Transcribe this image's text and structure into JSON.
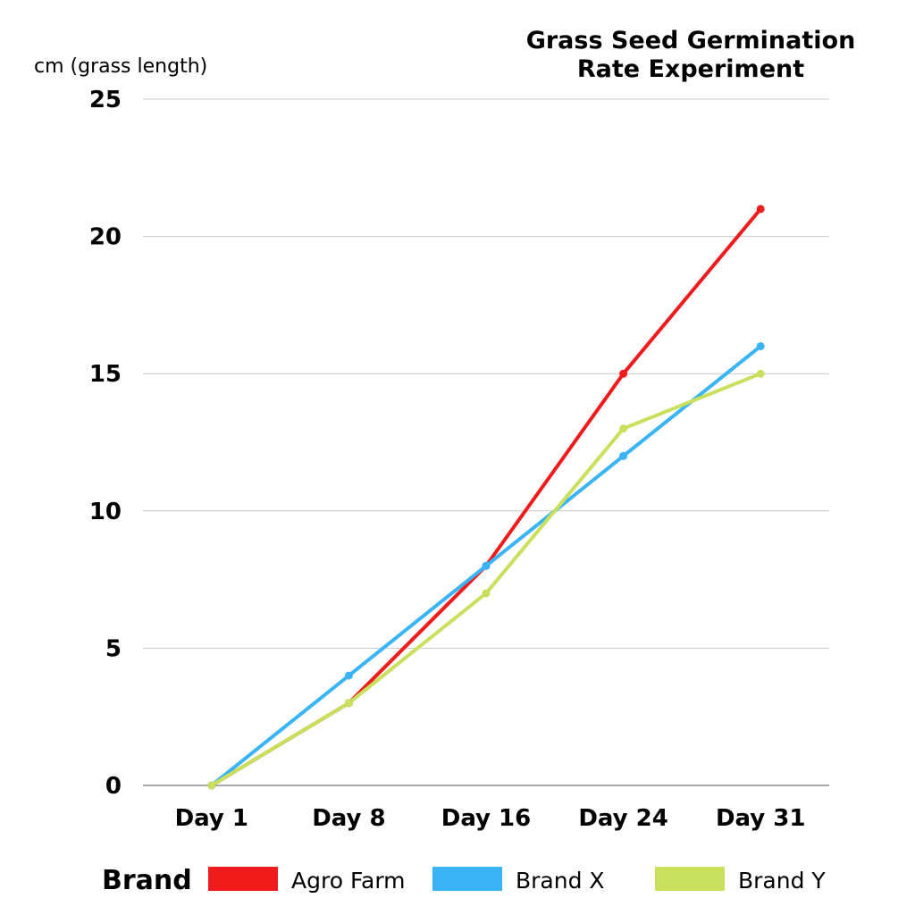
{
  "chart_data": {
    "type": "line",
    "title_lines": [
      "Grass Seed Germination",
      "Rate Experiment"
    ],
    "xlabel": "",
    "ylabel": "cm (grass length)",
    "categories": [
      "Day 1",
      "Day 8",
      "Day 16",
      "Day 24",
      "Day 31"
    ],
    "ylim": [
      0,
      25
    ],
    "yticks": [
      0,
      5,
      10,
      15,
      20,
      25
    ],
    "grid": true,
    "legend_title": "Brand",
    "legend_position": "bottom",
    "series": [
      {
        "name": "Agro Farm",
        "color": "#f01b1b",
        "values": [
          0,
          3,
          8,
          15,
          21
        ]
      },
      {
        "name": "Brand X",
        "color": "#3ab4f8",
        "values": [
          0,
          4,
          8,
          12,
          16
        ]
      },
      {
        "name": "Brand Y",
        "color": "#c8e05c",
        "values": [
          0,
          3,
          7,
          13,
          15
        ]
      }
    ]
  }
}
